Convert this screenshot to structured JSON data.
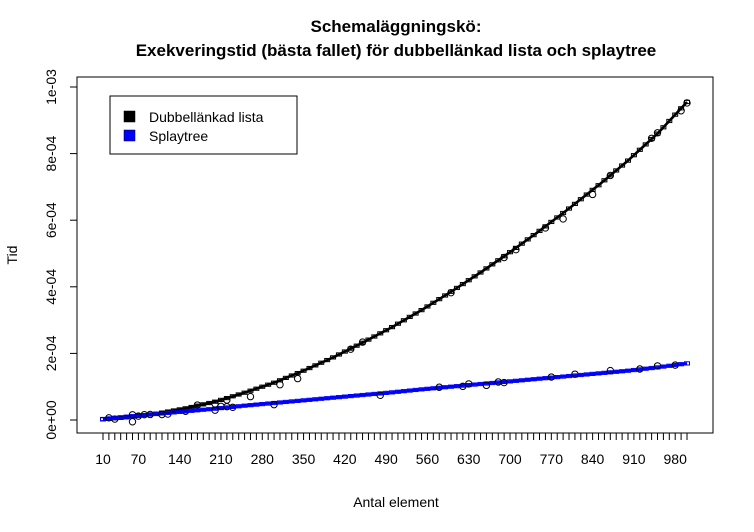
{
  "chart_data": {
    "type": "line",
    "title": "Schemaläggningskö:",
    "subtitle": "Exekveringstid (bästa fallet) för dubbellänkad lista och splaytree",
    "xlabel": "Antal element",
    "ylabel": "Tid",
    "xlim": [
      10,
      1000
    ],
    "ylim": [
      0,
      0.001
    ],
    "x_ticks": [
      10,
      70,
      140,
      210,
      280,
      350,
      420,
      490,
      560,
      630,
      700,
      770,
      840,
      910,
      980
    ],
    "x_tick_labels": [
      "10",
      "70",
      "140",
      "210",
      "280",
      "350",
      "420",
      "490",
      "560",
      "630",
      "700",
      "770",
      "840",
      "910",
      "980"
    ],
    "y_ticks": [
      0,
      0.0002,
      0.0004,
      0.0006,
      0.0008,
      0.001
    ],
    "y_tick_labels": [
      "0e+00",
      "2e-04",
      "4e-04",
      "6e-04",
      "8e-04",
      "1e-03"
    ],
    "x_box_step": 10,
    "grid": false,
    "legend_position": "top-left",
    "series": [
      {
        "name": "Dubbellänkad lista",
        "color": "#000000",
        "x": [
          10,
          50,
          100,
          150,
          200,
          250,
          300,
          350,
          400,
          450,
          500,
          550,
          600,
          650,
          700,
          750,
          800,
          850,
          900,
          950,
          1000
        ],
        "values": [
          2e-06,
          8e-06,
          1.9e-05,
          3.5e-05,
          5.5e-05,
          8.2e-05,
          0.000112,
          0.000148,
          0.000188,
          0.000232,
          0.000279,
          0.00033,
          0.000385,
          0.000443,
          0.000504,
          0.000568,
          0.000635,
          0.000705,
          0.000779,
          0.00086,
          0.000955
        ]
      },
      {
        "name": "Splaytree",
        "color": "#0000ff",
        "x": [
          10,
          50,
          100,
          150,
          200,
          250,
          300,
          350,
          400,
          450,
          500,
          550,
          600,
          650,
          700,
          750,
          800,
          850,
          900,
          950,
          1000
        ],
        "values": [
          3e-06,
          1e-05,
          1.8e-05,
          2.6e-05,
          3.4e-05,
          4.3e-05,
          5.1e-05,
          5.9e-05,
          6.7e-05,
          7.5e-05,
          8.3e-05,
          9.2e-05,
          0.0001,
          0.000108,
          0.000116,
          0.000124,
          0.000132,
          0.00014,
          0.000148,
          0.000158,
          0.00017
        ]
      }
    ]
  }
}
